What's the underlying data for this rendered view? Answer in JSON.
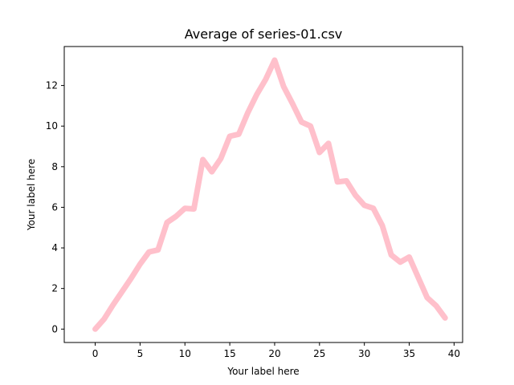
{
  "chart_data": {
    "type": "line",
    "title": "Average of series-01.csv",
    "xlabel": "Your label here",
    "ylabel": "Your label here",
    "xlim": [
      -3.45,
      40.95
    ],
    "ylim": [
      -0.66,
      13.92
    ],
    "xticks": [
      0,
      5,
      10,
      15,
      20,
      25,
      30,
      35,
      40
    ],
    "yticks": [
      0,
      2,
      4,
      6,
      8,
      10,
      12
    ],
    "grid": false,
    "series": [
      {
        "color": "#ffc0cb",
        "x": [
          0,
          1,
          2,
          3,
          4,
          5,
          6,
          7,
          8,
          9,
          10,
          11,
          12,
          13,
          14,
          15,
          16,
          17,
          18,
          19,
          20,
          21,
          22,
          23,
          24,
          25,
          26,
          27,
          28,
          29,
          30,
          31,
          32,
          33,
          34,
          35,
          36,
          37,
          38,
          39
        ],
        "values": [
          0.0,
          0.5,
          1.2,
          1.85,
          2.5,
          3.2,
          3.8,
          3.9,
          5.25,
          5.55,
          5.95,
          5.92,
          8.35,
          7.75,
          8.4,
          9.5,
          9.6,
          10.65,
          11.55,
          12.3,
          13.25,
          11.95,
          11.1,
          10.2,
          10.0,
          8.7,
          9.15,
          7.25,
          7.3,
          6.6,
          6.1,
          5.95,
          5.1,
          3.65,
          3.3,
          3.55,
          2.55,
          1.55,
          1.15,
          0.55
        ]
      }
    ]
  }
}
